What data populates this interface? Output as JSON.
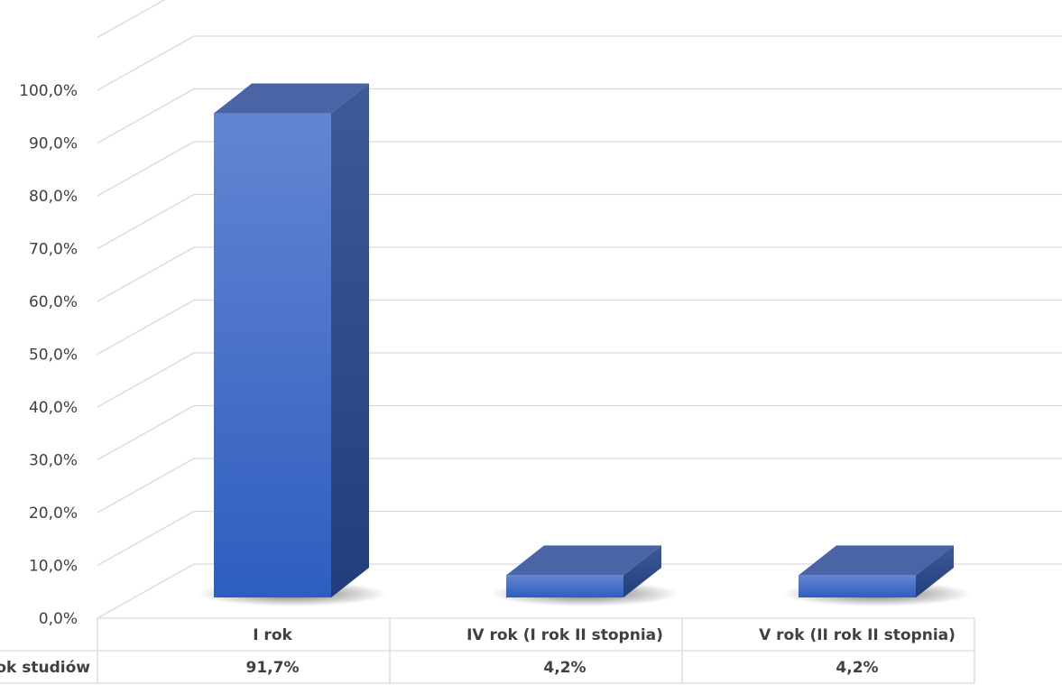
{
  "chart_data": {
    "type": "bar",
    "categories": [
      "I rok",
      "IV rok (I rok II stopnia)",
      "V rok (II rok II stopnia)"
    ],
    "series": [
      {
        "name": "Rok studiów",
        "values": [
          91.7,
          4.2,
          4.2
        ]
      }
    ],
    "data_labels": [
      "91,7%",
      "4,2%",
      "4,2%"
    ],
    "y_ticks": [
      0,
      10,
      20,
      30,
      40,
      50,
      60,
      70,
      80,
      90,
      100
    ],
    "y_tick_labels": [
      "0,0%",
      "10,0%",
      "20,0%",
      "30,0%",
      "40,0%",
      "50,0%",
      "60,0%",
      "70,0%",
      "80,0%",
      "90,0%",
      "100,0%"
    ],
    "ylim": [
      0,
      110
    ],
    "grid": true,
    "legend": "data-table-row-header",
    "colors": {
      "bar": "#4472c4",
      "bar_top": "#4a64a6",
      "bar_side": "#2d4a8c",
      "grid": "#d9d9d9",
      "text": "#404040"
    }
  }
}
